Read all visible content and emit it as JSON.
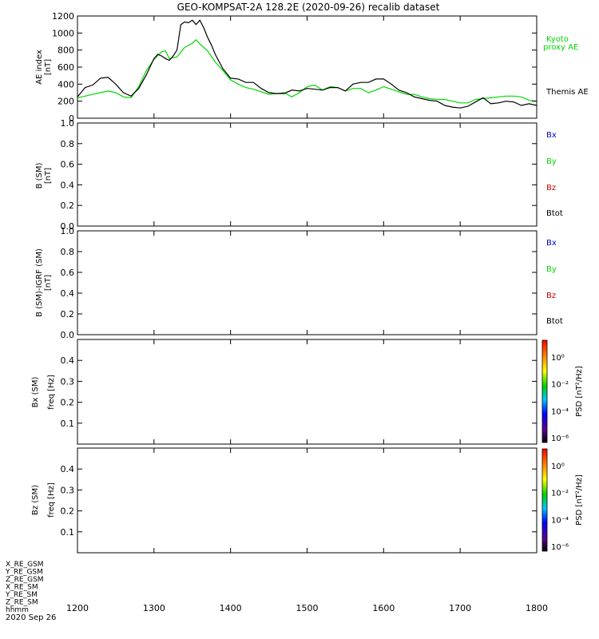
{
  "title": "GEO-KOMPSAT-2A 128.2E (2020-09-26) recalib dataset",
  "x_axis": {
    "ticks": [
      "1200",
      "1300",
      "1400",
      "1500",
      "1600",
      "1700",
      "1800"
    ],
    "tick_values": [
      1200,
      1300,
      1400,
      1500,
      1600,
      1700,
      1800
    ],
    "range": [
      1200,
      1800
    ],
    "varlabels": [
      "X_RE_GSM",
      "Y_RE_GSM",
      "Z_RE_GSM",
      "X_RE_SM",
      "Y_RE_SM",
      "Z_RE_SM",
      "hhmm"
    ],
    "date_label": "2020 Sep 26"
  },
  "colors": {
    "black": "#000000",
    "green": "#00d800",
    "blue": "#0000cc",
    "red": "#cc0000"
  },
  "panels": [
    {
      "id": "ae",
      "ylabel_lines": [
        "AE index",
        "[nT]"
      ],
      "yticks": [
        "0",
        "200",
        "400",
        "600",
        "800",
        "1000",
        "1200"
      ],
      "ytick_values": [
        0,
        200,
        400,
        600,
        800,
        1000,
        1200
      ],
      "yrange": [
        0,
        1200
      ],
      "legend": [
        {
          "text": "Kyoto",
          "color": "#00d800"
        },
        {
          "text": "proxy AE",
          "color": "#00d800"
        },
        {
          "text": "Themis AE",
          "color": "#000000"
        }
      ]
    },
    {
      "id": "bsm",
      "ylabel_lines": [
        "B (SM)",
        "[nT]"
      ],
      "yticks": [
        "0.0",
        "0.2",
        "0.4",
        "0.6",
        "0.8",
        "1.0"
      ],
      "ytick_values": [
        0,
        0.2,
        0.4,
        0.6,
        0.8,
        1.0
      ],
      "yrange": [
        0,
        1
      ],
      "legend": [
        {
          "text": "Bx",
          "color": "#0000cc"
        },
        {
          "text": "By",
          "color": "#00d800"
        },
        {
          "text": "Bz",
          "color": "#cc0000"
        },
        {
          "text": "Btot",
          "color": "#000000"
        }
      ]
    },
    {
      "id": "bigrf",
      "ylabel_lines": [
        "B (SM)-IGRF (SM)",
        "[nT]"
      ],
      "yticks": [
        "0.0",
        "0.2",
        "0.4",
        "0.6",
        "0.8",
        "1.0"
      ],
      "ytick_values": [
        0,
        0.2,
        0.4,
        0.6,
        0.8,
        1.0
      ],
      "yrange": [
        0,
        1
      ],
      "legend": [
        {
          "text": "Bx",
          "color": "#0000cc"
        },
        {
          "text": "By",
          "color": "#00d800"
        },
        {
          "text": "Bz",
          "color": "#cc0000"
        },
        {
          "text": "Btot",
          "color": "#000000"
        }
      ]
    },
    {
      "id": "bxspec",
      "ylabel_lines": [
        "Bx (SM)",
        "freq [Hz]"
      ],
      "yticks": [
        "0.1",
        "0.2",
        "0.3",
        "0.4"
      ],
      "ytick_values": [
        0.1,
        0.2,
        0.3,
        0.4
      ],
      "yrange": [
        0,
        0.5
      ],
      "colorbar": {
        "label": "PSD [nT²/Hz]",
        "ticks": [
          "10⁰",
          "10⁻²",
          "10⁻⁴",
          "10⁻⁶"
        ]
      }
    },
    {
      "id": "bzspec",
      "ylabel_lines": [
        "Bz (SM)",
        "freq [Hz]"
      ],
      "yticks": [
        "0.1",
        "0.2",
        "0.3",
        "0.4"
      ],
      "ytick_values": [
        0.1,
        0.2,
        0.3,
        0.4
      ],
      "yrange": [
        0,
        0.5
      ],
      "colorbar": {
        "label": "PSD [nT²/Hz]",
        "ticks": [
          "10⁰",
          "10⁻²",
          "10⁻⁴",
          "10⁻⁶"
        ]
      }
    }
  ],
  "chart_data": {
    "type": "line",
    "title": "GEO-KOMPSAT-2A 128.2E (2020-09-26) recalib dataset",
    "xlabel": "hhmm",
    "ylabel": "AE index [nT]",
    "xlim": [
      1200,
      1800
    ],
    "ylim": [
      0,
      1200
    ],
    "series": [
      {
        "name": "Themis AE",
        "color": "#000000",
        "x": [
          1200,
          1210,
          1220,
          1230,
          1240,
          1250,
          1260,
          1270,
          1280,
          1290,
          1300,
          1305,
          1310,
          1315,
          1320,
          1325,
          1330,
          1335,
          1340,
          1345,
          1350,
          1355,
          1360,
          1365,
          1370,
          1375,
          1380,
          1390,
          1400,
          1410,
          1420,
          1430,
          1440,
          1450,
          1460,
          1470,
          1480,
          1490,
          1500,
          1510,
          1520,
          1530,
          1540,
          1550,
          1560,
          1570,
          1580,
          1590,
          1600,
          1610,
          1620,
          1630,
          1640,
          1650,
          1660,
          1670,
          1680,
          1690,
          1700,
          1710,
          1720,
          1730,
          1740,
          1750,
          1760,
          1770,
          1780,
          1790,
          1800
        ],
        "y": [
          250,
          360,
          390,
          470,
          480,
          400,
          300,
          260,
          350,
          510,
          700,
          750,
          730,
          700,
          680,
          730,
          800,
          1100,
          1130,
          1120,
          1150,
          1100,
          1150,
          1060,
          950,
          860,
          750,
          580,
          470,
          460,
          420,
          420,
          350,
          300,
          290,
          290,
          330,
          320,
          350,
          340,
          330,
          360,
          360,
          320,
          400,
          420,
          420,
          460,
          460,
          400,
          330,
          300,
          250,
          230,
          210,
          200,
          150,
          130,
          120,
          140,
          190,
          240,
          170,
          180,
          200,
          190,
          150,
          170,
          150
        ]
      },
      {
        "name": "Kyoto proxy AE",
        "color": "#00d800",
        "x": [
          1200,
          1210,
          1220,
          1230,
          1240,
          1250,
          1260,
          1270,
          1280,
          1290,
          1300,
          1310,
          1315,
          1320,
          1330,
          1340,
          1350,
          1355,
          1360,
          1370,
          1380,
          1390,
          1400,
          1410,
          1420,
          1430,
          1440,
          1450,
          1460,
          1470,
          1480,
          1490,
          1500,
          1510,
          1520,
          1530,
          1540,
          1550,
          1560,
          1570,
          1580,
          1590,
          1600,
          1610,
          1620,
          1630,
          1640,
          1650,
          1660,
          1670,
          1680,
          1690,
          1700,
          1710,
          1720,
          1730,
          1740,
          1750,
          1760,
          1770,
          1780,
          1790,
          1800
        ],
        "y": [
          240,
          260,
          280,
          300,
          320,
          300,
          250,
          240,
          370,
          560,
          690,
          780,
          790,
          700,
          720,
          830,
          880,
          920,
          870,
          790,
          660,
          560,
          450,
          400,
          360,
          340,
          310,
          280,
          290,
          300,
          250,
          300,
          370,
          390,
          330,
          370,
          360,
          320,
          350,
          350,
          300,
          330,
          370,
          340,
          310,
          280,
          280,
          250,
          230,
          220,
          220,
          200,
          180,
          180,
          220,
          230,
          240,
          250,
          260,
          260,
          250,
          210,
          200
        ]
      }
    ]
  }
}
